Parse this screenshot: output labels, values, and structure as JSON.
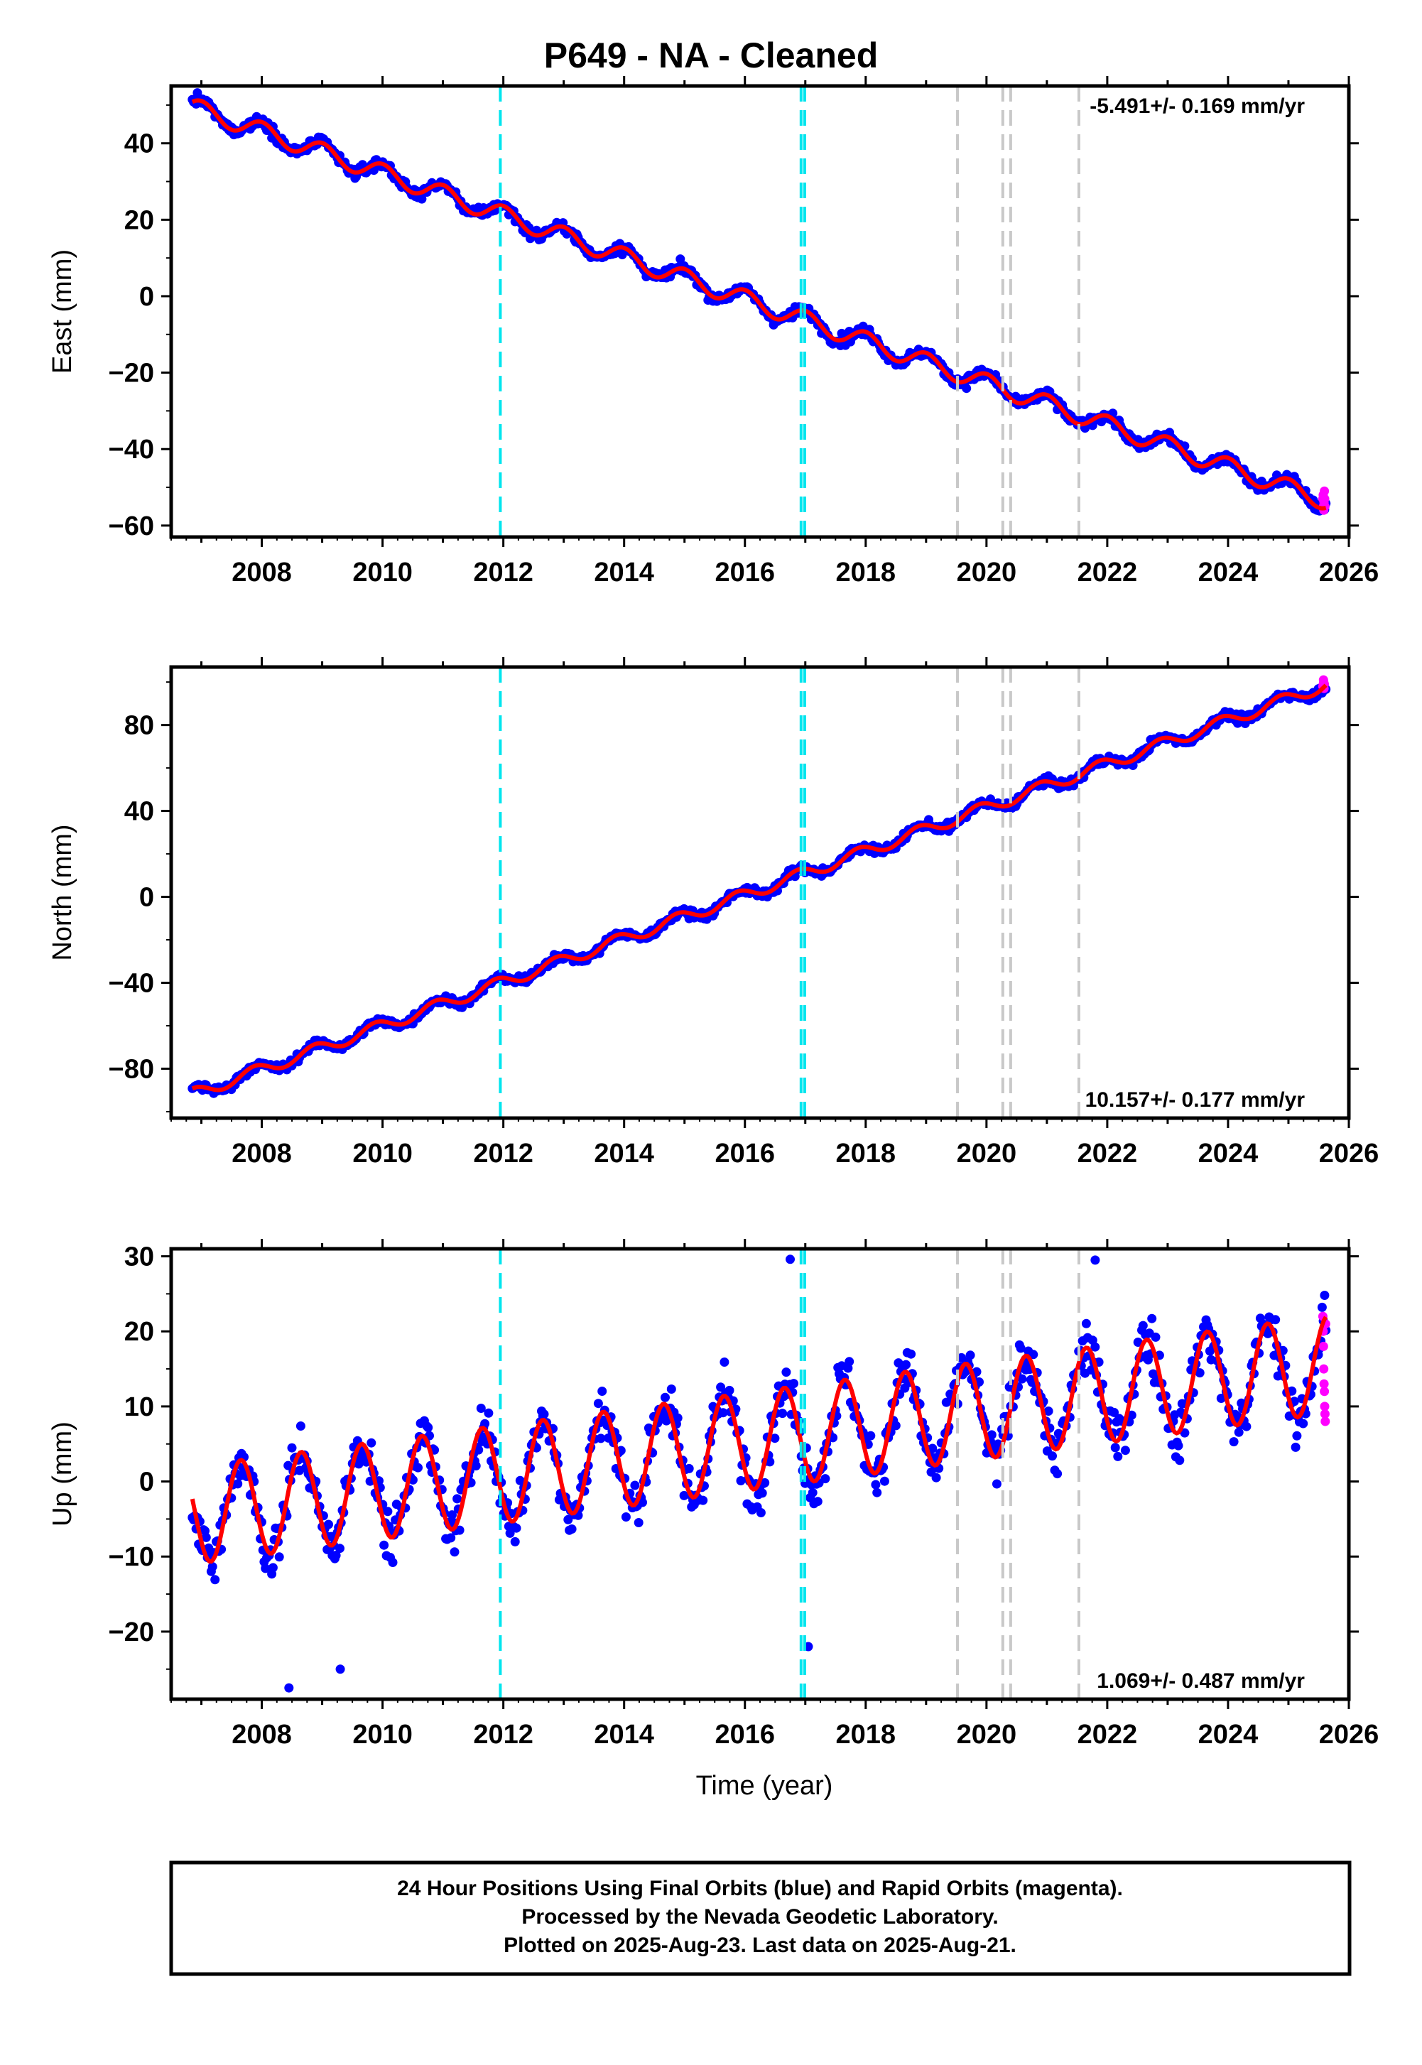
{
  "title": "P649  - NA - Cleaned",
  "colors": {
    "final_orbits": "#0000ff",
    "rapid_orbits": "#ff00ff",
    "model_fit": "#ff0000",
    "equipment_change": "#00e5ee",
    "earthquake": "#c8c8c8"
  },
  "xlabel": "Time (year)",
  "footer": {
    "line1": "24 Hour Positions Using Final Orbits (blue) and Rapid Orbits (magenta).",
    "line2": "Processed by the Nevada Geodetic Laboratory.",
    "line3": "Plotted on 2025-Aug-23. Last data on 2025-Aug-21."
  },
  "chart_data": [
    {
      "type": "scatter",
      "component": "east",
      "ylabel": "East (mm)",
      "xlim": [
        2006.5,
        2026
      ],
      "ylim": [
        -63,
        55
      ],
      "xticks": [
        2008,
        2010,
        2012,
        2014,
        2016,
        2018,
        2020,
        2022,
        2024,
        2026
      ],
      "yticks": [
        -60,
        -40,
        -20,
        0,
        20,
        40
      ],
      "rate_label": "-5.491+/- 0.169 mm/yr",
      "rate_position": "top-right",
      "start_year": 2006.85,
      "end_year": 2025.62,
      "start_value": 49.5,
      "rate_mm_per_yr": -5.491,
      "seasonal_amplitude": 2.4,
      "seasonal_phase": 0.6,
      "scatter_sigma": 1.4,
      "rapid_values": [
        -53,
        -52,
        -55,
        -56,
        -54,
        -51,
        -53,
        -55
      ],
      "equipment_changes": [
        2011.95,
        2016.93,
        2016.99
      ],
      "earthquakes": [
        2019.52,
        2020.27,
        2020.4,
        2021.53
      ]
    },
    {
      "type": "scatter",
      "component": "north",
      "ylabel": "North (mm)",
      "xlim": [
        2006.5,
        2026
      ],
      "ylim": [
        -103,
        107
      ],
      "xticks": [
        2008,
        2010,
        2012,
        2014,
        2016,
        2018,
        2020,
        2022,
        2024,
        2026
      ],
      "yticks": [
        -80,
        -40,
        0,
        40,
        80
      ],
      "rate_label": "10.157+/- 0.177 mm/yr",
      "rate_position": "bottom-right",
      "start_year": 2006.85,
      "end_year": 2025.62,
      "start_value": -92,
      "rate_mm_per_yr": 10.157,
      "seasonal_amplitude": 2.8,
      "seasonal_phase": 1.4,
      "scatter_sigma": 2.0,
      "rapid_values": [
        98,
        99,
        101,
        100,
        97,
        99
      ],
      "equipment_changes": [
        2011.95,
        2016.93,
        2016.99
      ],
      "earthquakes": [
        2019.52,
        2020.27,
        2020.4,
        2021.53
      ]
    },
    {
      "type": "scatter",
      "component": "up",
      "ylabel": "Up (mm)",
      "xlim": [
        2006.5,
        2026
      ],
      "ylim": [
        -29,
        31
      ],
      "xticks": [
        2008,
        2010,
        2012,
        2014,
        2016,
        2018,
        2020,
        2022,
        2024,
        2026
      ],
      "yticks": [
        -20,
        -10,
        0,
        10,
        20,
        30
      ],
      "rate_label": "1.069+/- 0.487 mm/yr",
      "rate_position": "bottom-right",
      "start_year": 2006.85,
      "end_year": 2025.62,
      "start_value": -4.5,
      "rate_mm_per_yr": 1.069,
      "seasonal_amplitude": 6.5,
      "seasonal_phase": 2.8,
      "scatter_sigma": 3.5,
      "rapid_values": [
        22,
        20,
        18,
        15,
        13,
        12,
        10,
        9,
        8,
        21
      ],
      "outliers": [
        [
          2008.45,
          -27.5
        ],
        [
          2016.75,
          29.6
        ],
        [
          2021.8,
          29.5
        ],
        [
          2009.3,
          -25
        ],
        [
          2017.05,
          -22
        ]
      ],
      "equipment_changes": [
        2011.95,
        2016.93,
        2016.99
      ],
      "earthquakes": [
        2019.52,
        2020.27,
        2020.4,
        2021.53
      ]
    }
  ]
}
